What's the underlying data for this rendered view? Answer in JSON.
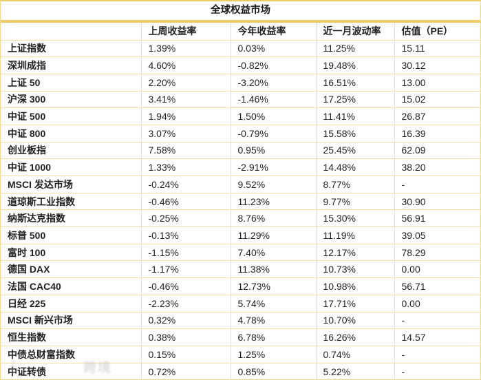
{
  "chart_data": {
    "type": "table",
    "title": "全球权益市场",
    "columns": [
      "",
      "上周收益率",
      "今年收益率",
      "近一月波动率",
      "估值（PE）"
    ],
    "rows": [
      [
        "上证指数",
        "1.39%",
        "0.03%",
        "11.25%",
        "15.11"
      ],
      [
        "深圳成指",
        "4.60%",
        "-0.82%",
        "19.48%",
        "30.12"
      ],
      [
        "上证 50",
        "2.20%",
        "-3.20%",
        "16.51%",
        "13.00"
      ],
      [
        "沪深 300",
        "3.41%",
        "-1.46%",
        "17.25%",
        "15.02"
      ],
      [
        "中证 500",
        "1.94%",
        "1.50%",
        "11.41%",
        "26.87"
      ],
      [
        "中证 800",
        "3.07%",
        "-0.79%",
        "15.58%",
        "16.39"
      ],
      [
        "创业板指",
        "7.58%",
        "0.95%",
        "25.45%",
        "62.09"
      ],
      [
        "中证 1000",
        "1.33%",
        "-2.91%",
        "14.48%",
        "38.20"
      ],
      [
        "MSCI 发达市场",
        "-0.24%",
        "9.52%",
        "8.77%",
        "-"
      ],
      [
        "道琼斯工业指数",
        "-0.46%",
        "11.23%",
        "9.77%",
        "30.90"
      ],
      [
        "纳斯达克指数",
        "-0.25%",
        "8.76%",
        "15.30%",
        "56.91"
      ],
      [
        "标普 500",
        "-0.13%",
        "11.29%",
        "11.19%",
        "39.05"
      ],
      [
        "富时 100",
        "-1.15%",
        "7.40%",
        "12.17%",
        "78.29"
      ],
      [
        "德国 DAX",
        "-1.17%",
        "11.38%",
        "10.73%",
        "0.00"
      ],
      [
        "法国 CAC40",
        "-0.46%",
        "12.73%",
        "10.98%",
        "56.71"
      ],
      [
        "日经 225",
        "-2.23%",
        "5.74%",
        "17.71%",
        "0.00"
      ],
      [
        "MSCI 新兴市场",
        "0.32%",
        "4.78%",
        "10.70%",
        "-"
      ],
      [
        "恒生指数",
        "0.38%",
        "6.78%",
        "16.26%",
        "14.57"
      ],
      [
        "中债总财富指数",
        "0.15%",
        "1.25%",
        "0.74%",
        "-"
      ],
      [
        "中证转债",
        "0.72%",
        "0.85%",
        "5.22%",
        "-"
      ]
    ],
    "layout": {
      "grid": "on",
      "header_divider_color": "#efcb65",
      "border_color": "#f5dfa6"
    }
  },
  "watermark": {
    "left_fragment": "〔",
    "text": "跨境"
  },
  "colors": {
    "border_thin": "#f5dfa6",
    "border_outer": "#f2d88f",
    "divider_band": "#efcb65",
    "text": "#1f1f1f",
    "background": "#ffffff"
  }
}
